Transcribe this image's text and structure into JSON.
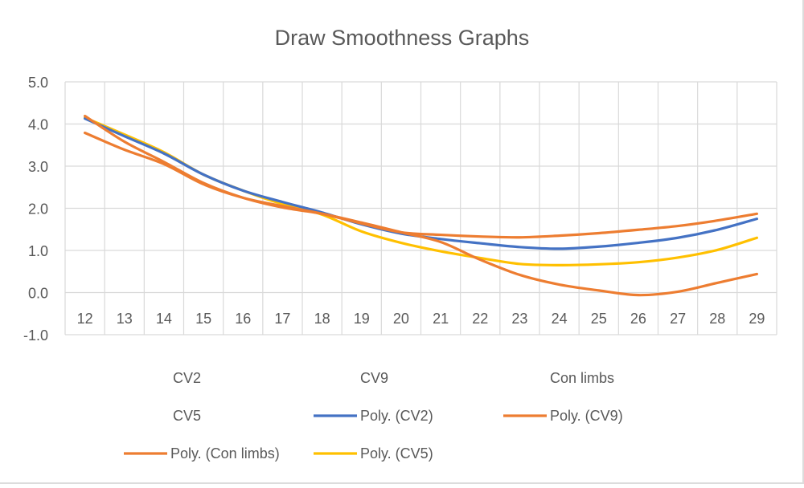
{
  "chart_data": {
    "type": "line",
    "title": "Draw Smoothness Graphs",
    "xlabel": "",
    "ylabel": "",
    "x": [
      12,
      13,
      14,
      15,
      16,
      17,
      18,
      19,
      20,
      21,
      22,
      23,
      24,
      25,
      26,
      27,
      28,
      29
    ],
    "ylim": [
      -1.0,
      5.0
    ],
    "yticks": [
      "5.0",
      "4.0",
      "3.0",
      "2.0",
      "1.0",
      "0.0",
      "-1.0"
    ],
    "ytick_values": [
      5,
      4,
      3,
      2,
      1,
      0,
      -1
    ],
    "grid": true,
    "legend_placement": "bottom",
    "legend": [
      {
        "name": "CV2",
        "has_marker": false
      },
      {
        "name": "CV9",
        "has_marker": false
      },
      {
        "name": "Con limbs",
        "has_marker": false
      },
      {
        "name": "CV5",
        "has_marker": false
      },
      {
        "name": "Poly. (CV2)",
        "has_marker": true,
        "color": "#4472C4"
      },
      {
        "name": "Poly. (CV9)",
        "has_marker": true,
        "color": "#ED7D31"
      },
      {
        "name": "Poly. (Con limbs)",
        "has_marker": true,
        "color": "#ED7D31"
      },
      {
        "name": "Poly. (CV5)",
        "has_marker": true,
        "color": "#FFC000"
      }
    ],
    "series": [
      {
        "name": "Poly. (CV5)",
        "color": "#FFC000",
        "values": [
          4.15,
          3.75,
          3.33,
          2.8,
          2.42,
          2.1,
          1.85,
          1.45,
          1.18,
          0.98,
          0.82,
          0.68,
          0.65,
          0.67,
          0.72,
          0.83,
          1.01,
          1.3
        ]
      },
      {
        "name": "Poly. (CV2)",
        "color": "#4472C4",
        "values": [
          4.13,
          3.71,
          3.3,
          2.8,
          2.42,
          2.15,
          1.9,
          1.62,
          1.4,
          1.27,
          1.17,
          1.08,
          1.04,
          1.09,
          1.18,
          1.3,
          1.49,
          1.75
        ]
      },
      {
        "name": "Poly. (CV9)",
        "color": "#ED7D31",
        "values": [
          3.79,
          3.39,
          3.05,
          2.57,
          2.25,
          2.05,
          1.87,
          1.64,
          1.43,
          1.37,
          1.33,
          1.31,
          1.35,
          1.41,
          1.49,
          1.58,
          1.71,
          1.87
        ]
      },
      {
        "name": "Poly. (Con limbs)",
        "color": "#ED7D31",
        "values": [
          4.19,
          3.58,
          3.1,
          2.6,
          2.25,
          2.02,
          1.87,
          1.66,
          1.43,
          1.2,
          0.78,
          0.42,
          0.19,
          0.05,
          -0.06,
          0.02,
          0.23,
          0.44
        ]
      }
    ]
  }
}
